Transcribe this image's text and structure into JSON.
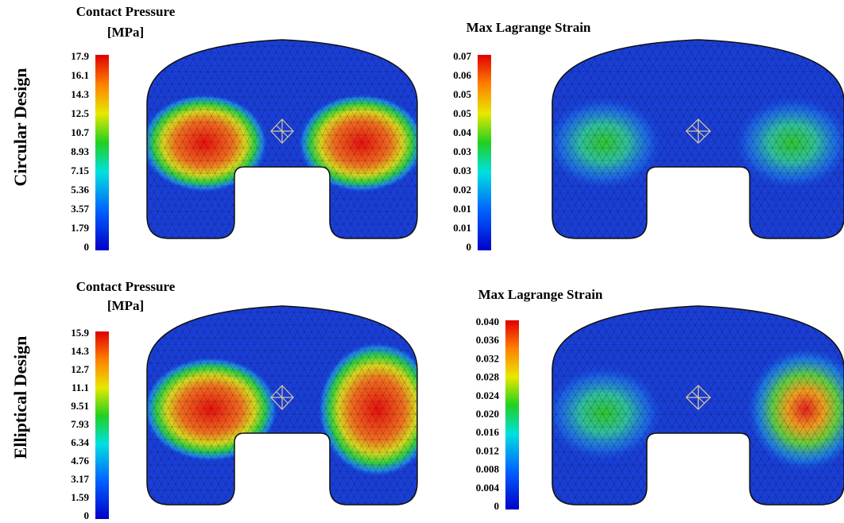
{
  "rows": [
    {
      "label": "Circular Design",
      "panels": [
        {
          "title": "Contact Pressure",
          "unit": "[MPa]",
          "colorbar": [
            "17.9",
            "16.1",
            "14.3",
            "12.5",
            "10.7",
            "8.93",
            "7.15",
            "5.36",
            "3.57",
            "1.79",
            "0"
          ]
        },
        {
          "title": "Max Lagrange Strain",
          "colorbar": [
            "0.07",
            "0.06",
            "0.05",
            "0.05",
            "0.04",
            "0.03",
            "0.03",
            "0.02",
            "0.01",
            "0.01",
            "0"
          ]
        }
      ]
    },
    {
      "label": "Elliptical Design",
      "panels": [
        {
          "title": "Contact Pressure",
          "unit": "[MPa]",
          "colorbar": [
            "15.9",
            "14.3",
            "12.7",
            "11.1",
            "9.51",
            "7.93",
            "6.34",
            "4.76",
            "3.17",
            "1.59",
            "0"
          ]
        },
        {
          "title": "Max Lagrange Strain",
          "colorbar": [
            "0.040",
            "0.036",
            "0.032",
            "0.028",
            "0.024",
            "0.020",
            "0.016",
            "0.012",
            "0.008",
            "0.004",
            "0"
          ]
        }
      ]
    }
  ]
}
